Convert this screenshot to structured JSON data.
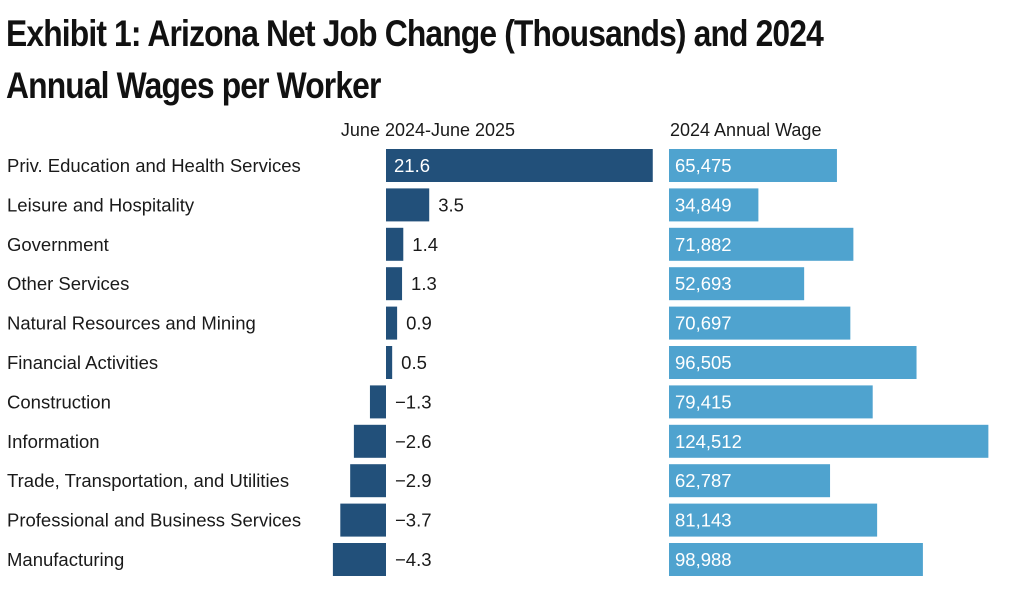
{
  "chart_data": {
    "type": "bar",
    "title": "Exhibit 1: Arizona Net Job Change (Thousands) and 2024 Annual Wages per Worker",
    "categories": [
      "Priv. Education and Health Services",
      "Leisure and Hospitality",
      "Government",
      "Other Services",
      "Natural Resources and Mining",
      "Financial Activities",
      "Construction",
      "Information",
      "Trade, Transportation, and Utilities",
      "Professional and Business Services",
      "Manufacturing"
    ],
    "series": [
      {
        "name": "June 2024-June 2025",
        "values": [
          21.6,
          3.5,
          1.4,
          1.3,
          0.9,
          0.5,
          -1.3,
          -2.6,
          -2.9,
          -3.7,
          -4.3
        ],
        "labels": [
          "21.6",
          "3.5",
          "1.4",
          "1.3",
          "0.9",
          "0.5",
          "−1.3",
          "−2.6",
          "−2.9",
          "−3.7",
          "−4.3"
        ],
        "color": "#22507a"
      },
      {
        "name": "2024 Annual Wage",
        "values": [
          65475,
          34849,
          71882,
          52693,
          70697,
          96505,
          79415,
          124512,
          62787,
          81143,
          98988
        ],
        "labels": [
          "65,475",
          "34,849",
          "71,882",
          "52,693",
          "70,697",
          "96,505",
          "79,415",
          "124,512",
          "62,787",
          "81,143",
          "98,988"
        ],
        "color": "#4fa3cf"
      }
    ]
  }
}
